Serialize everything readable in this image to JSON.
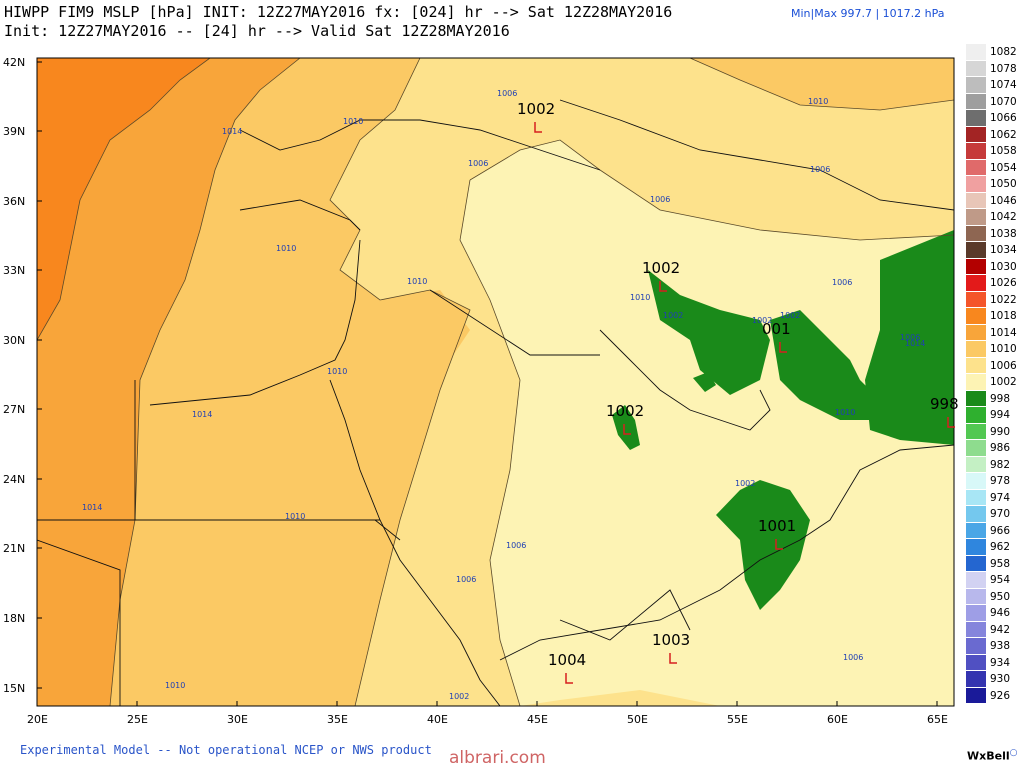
{
  "header": {
    "title_line1": "HIWPP FIM9 MSLP [hPa] INIT: 12Z27MAY2016 fx: [024] hr --> Sat 12Z28MAY2016",
    "title_line2": "Init: 12Z27MAY2016 -- [24] hr --> Valid Sat 12Z28MAY2016",
    "minmax": "Min|Max 997.7 | 1017.2 hPa"
  },
  "axes": {
    "lat_labels": [
      "42N",
      "39N",
      "36N",
      "33N",
      "30N",
      "27N",
      "24N",
      "21N",
      "18N",
      "15N"
    ],
    "lon_labels": [
      "20E",
      "25E",
      "30E",
      "35E",
      "40E",
      "45E",
      "50E",
      "55E",
      "60E",
      "65E"
    ]
  },
  "isobar_labels": [
    "1006",
    "1010",
    "1014",
    "1006",
    "1010",
    "1010",
    "1010",
    "1010",
    "1014",
    "1014",
    "1010",
    "1010",
    "1006",
    "1006",
    "1006",
    "1006",
    "1006",
    "1002",
    "1002",
    "1002",
    "1002",
    "1002",
    "1006",
    "1006",
    "1010",
    "1014",
    "1010"
  ],
  "centers": [
    {
      "value": "1002"
    },
    {
      "value": "1002"
    },
    {
      "value": "001"
    },
    {
      "value": "1002"
    },
    {
      "value": "998"
    },
    {
      "value": "1001"
    },
    {
      "value": "1004"
    },
    {
      "value": "1003"
    }
  ],
  "legend": {
    "items": [
      {
        "label": "1082",
        "color": "#efefef"
      },
      {
        "label": "1078",
        "color": "#d6d6d6"
      },
      {
        "label": "1074",
        "color": "#bdbdbd"
      },
      {
        "label": "1070",
        "color": "#9e9e9e"
      },
      {
        "label": "1066",
        "color": "#6e6e6e"
      },
      {
        "label": "1062",
        "color": "#a32424"
      },
      {
        "label": "1058",
        "color": "#c63a3a"
      },
      {
        "label": "1054",
        "color": "#e06a6a"
      },
      {
        "label": "1050",
        "color": "#f0a0a0"
      },
      {
        "label": "1046",
        "color": "#e8c6b8"
      },
      {
        "label": "1042",
        "color": "#bf9a88"
      },
      {
        "label": "1038",
        "color": "#8e6652"
      },
      {
        "label": "1034",
        "color": "#5a3a2a"
      },
      {
        "label": "1030",
        "color": "#b30000"
      },
      {
        "label": "1026",
        "color": "#e31a1a"
      },
      {
        "label": "1022",
        "color": "#f4552a"
      },
      {
        "label": "1018",
        "color": "#f8871e"
      },
      {
        "label": "1014",
        "color": "#f8a53a"
      },
      {
        "label": "1010",
        "color": "#fbc964"
      },
      {
        "label": "1006",
        "color": "#fde28c"
      },
      {
        "label": "1002",
        "color": "#fdf3b4"
      },
      {
        "label": "998",
        "color": "#1a8a1a"
      },
      {
        "label": "994",
        "color": "#2fb02f"
      },
      {
        "label": "990",
        "color": "#52c852"
      },
      {
        "label": "986",
        "color": "#8edc8e"
      },
      {
        "label": "982",
        "color": "#c4f0c4"
      },
      {
        "label": "978",
        "color": "#d8f8f8"
      },
      {
        "label": "974",
        "color": "#a8e6f5"
      },
      {
        "label": "970",
        "color": "#74c8ee"
      },
      {
        "label": "966",
        "color": "#4aa6e6"
      },
      {
        "label": "962",
        "color": "#2f86de"
      },
      {
        "label": "958",
        "color": "#2466d0"
      },
      {
        "label": "954",
        "color": "#d2d2f2"
      },
      {
        "label": "950",
        "color": "#b8b8ec"
      },
      {
        "label": "946",
        "color": "#9e9ee6"
      },
      {
        "label": "942",
        "color": "#8585dc"
      },
      {
        "label": "938",
        "color": "#6a6ad0"
      },
      {
        "label": "934",
        "color": "#5050c2"
      },
      {
        "label": "930",
        "color": "#3434b0"
      },
      {
        "label": "926",
        "color": "#1a1a99"
      }
    ]
  },
  "footer": {
    "disclaimer": "Experimental Model -- Not operational NCEP or NWS product",
    "brand": "WxBell",
    "watermark": "albrari.com"
  }
}
